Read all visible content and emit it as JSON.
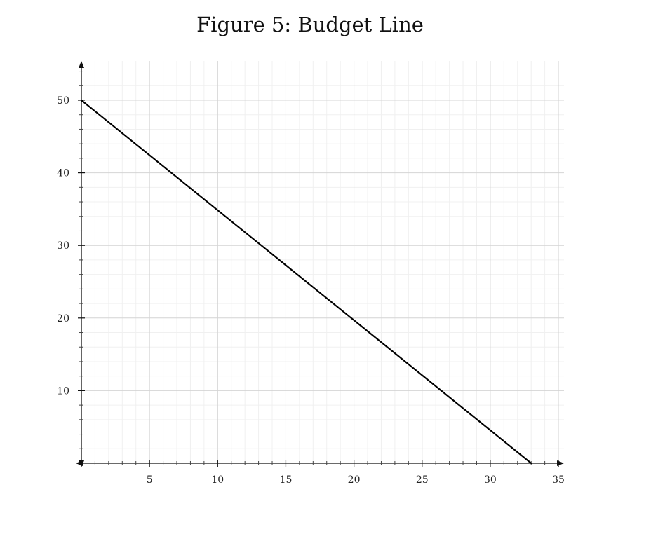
{
  "chart_data": {
    "type": "line",
    "title": "Figure 5: Budget Line",
    "xlabel": "",
    "ylabel": "",
    "xlim": [
      0,
      35
    ],
    "ylim": [
      0,
      50
    ],
    "x_ticks": [
      5,
      10,
      15,
      20,
      25,
      30,
      35
    ],
    "y_ticks": [
      10,
      20,
      30,
      40,
      50
    ],
    "grid": true,
    "series": [
      {
        "x": [
          0,
          33
        ],
        "y": [
          50,
          0
        ],
        "color": "#000000"
      }
    ]
  }
}
